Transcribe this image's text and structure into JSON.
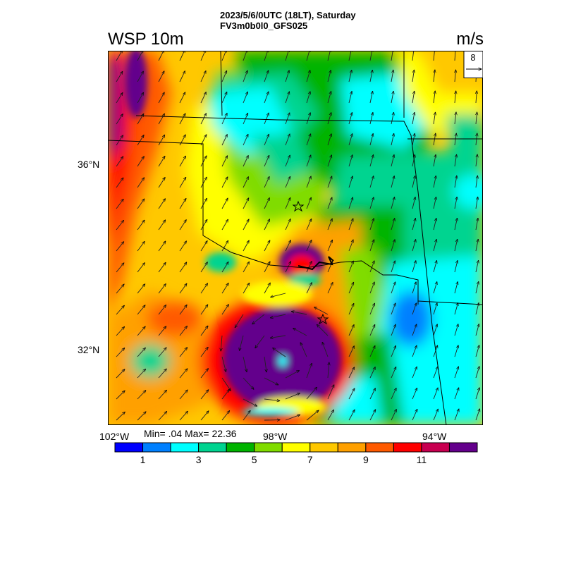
{
  "header": {
    "line1": "2023/5/6/0UTC (18LT), Saturday",
    "line2": "FV3m0b0l0_GFS025"
  },
  "field_title": "WSP 10m",
  "units": "m/s",
  "ref_vector": {
    "value": "8"
  },
  "lat_labels": [
    "36°N",
    "32°N"
  ],
  "lon_labels": [
    "102°W",
    "98°W",
    "94°W"
  ],
  "stats": {
    "min_max": "Min= .04 Max= 22.36"
  },
  "colorbar": {
    "colors": [
      "#0000ff",
      "#0080ff",
      "#00ffff",
      "#00d490",
      "#00b400",
      "#80dc00",
      "#ffff00",
      "#ffc800",
      "#ffa000",
      "#ff5a00",
      "#ff0000",
      "#c80050",
      "#64008c"
    ],
    "labels": [
      "1",
      "3",
      "5",
      "7",
      "9",
      "11"
    ]
  },
  "markers": [
    "star",
    "star"
  ]
}
